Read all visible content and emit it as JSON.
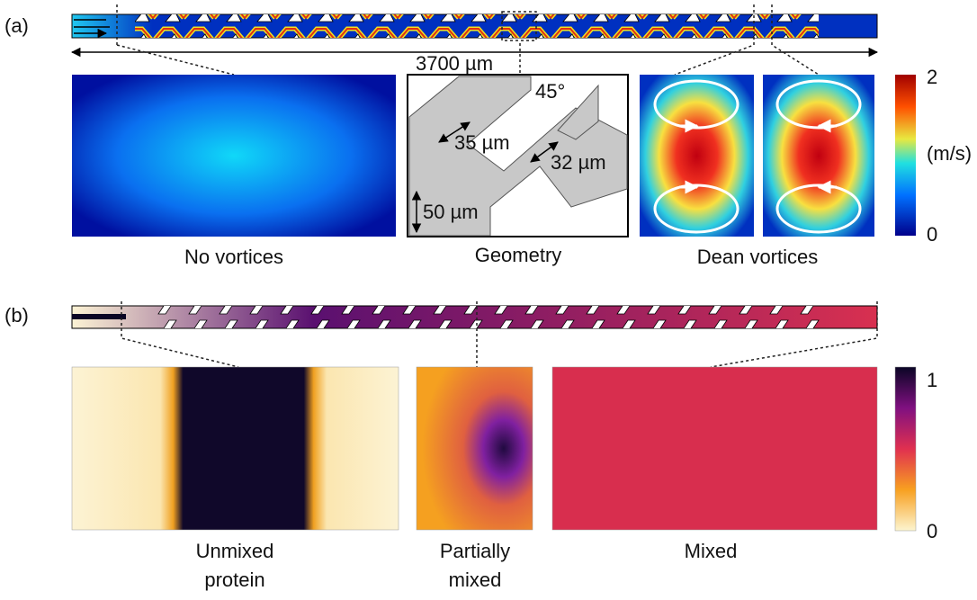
{
  "panel_a": {
    "label": "(a)",
    "length_label": "3700 µm",
    "captions": [
      "No vortices",
      "Geometry",
      "Dean vortices"
    ],
    "geometry": {
      "angle": "45°",
      "dims": [
        "35 µm",
        "32 µm",
        "50 µm"
      ]
    },
    "colorbar": {
      "max": "2",
      "min": "0",
      "unit": "(m/s)"
    }
  },
  "panel_b": {
    "label": "(b)",
    "captions": [
      [
        "Unmixed",
        "protein"
      ],
      [
        "Partially",
        "mixed"
      ],
      [
        "Mixed"
      ]
    ],
    "colorbar": {
      "max": "1",
      "min": "0"
    }
  }
}
